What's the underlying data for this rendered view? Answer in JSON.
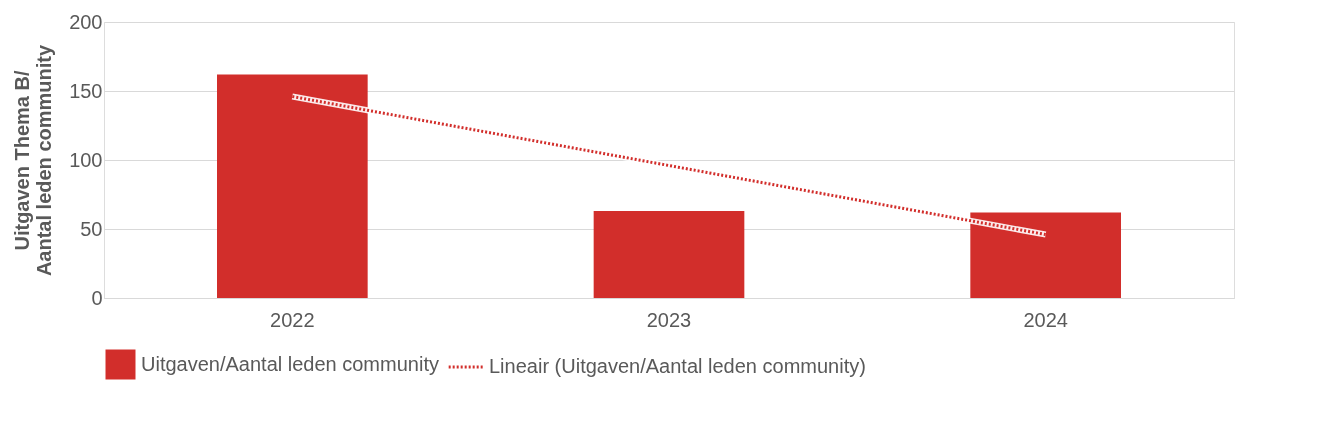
{
  "chart_data": {
    "type": "bar",
    "ylabel": "Uitgaven Thema B/\nAantal leden community",
    "categories": [
      "2022",
      "2023",
      "2024"
    ],
    "series": [
      {
        "name": "Uitgaven/Aantal leden community",
        "color": "#d22e2b",
        "values": [
          162,
          63,
          62
        ]
      },
      {
        "name": "Lineair (Uitgaven/Aantal leden community)",
        "type": "line",
        "line_style": "dotted",
        "color": "#d22e2b",
        "values": [
          146,
          96,
          46
        ]
      }
    ],
    "ylim": [
      0,
      200
    ],
    "yticks": [
      0,
      50,
      100,
      150,
      200
    ],
    "grid": "y",
    "legend": "bottom",
    "marker": "none"
  }
}
